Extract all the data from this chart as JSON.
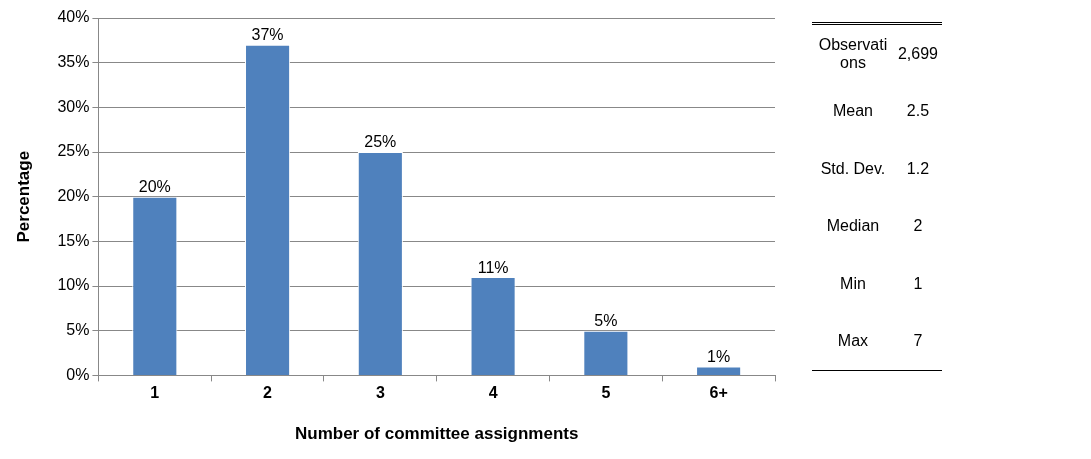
{
  "chart_data": [
    {
      "type": "bar",
      "xlabel": "Number of committee assignments",
      "ylabel": "Percentage",
      "categories": [
        "1",
        "2",
        "3",
        "4",
        "5",
        "6+"
      ],
      "values": [
        20,
        37,
        25,
        11,
        5,
        1
      ],
      "value_labels": [
        "20%",
        "37%",
        "25%",
        "11%",
        "5%",
        "1%"
      ],
      "color": "#4f81bd",
      "ylim": [
        0,
        40
      ],
      "yticks": [
        {
          "value": 0,
          "label": "0%"
        },
        {
          "value": 5,
          "label": "5%"
        },
        {
          "value": 10,
          "label": "10%"
        },
        {
          "value": 15,
          "label": "15%"
        },
        {
          "value": 20,
          "label": "20%"
        },
        {
          "value": 25,
          "label": "25%"
        },
        {
          "value": 30,
          "label": "30%"
        },
        {
          "value": 35,
          "label": "35%"
        },
        {
          "value": 40,
          "label": "40%"
        }
      ],
      "grid": "y",
      "legend": false
    },
    {
      "type": "other",
      "annotations": [
        "Observations",
        "2,699",
        "Mean",
        "2.5",
        "Std. Dev.",
        "1.2",
        "Median",
        "2",
        "Min",
        "1",
        "Max",
        "7"
      ]
    }
  ]
}
